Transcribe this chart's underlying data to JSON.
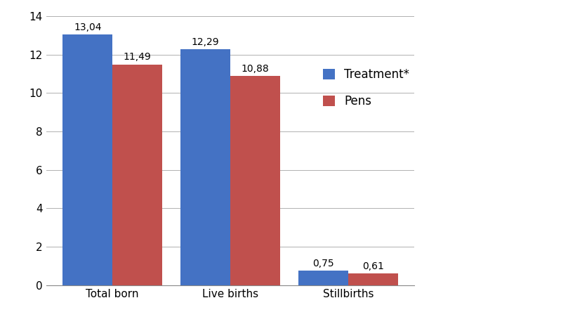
{
  "categories": [
    "Total born",
    "Live births",
    "Stillbirths"
  ],
  "treatment_values": [
    13.04,
    12.29,
    0.75
  ],
  "pens_values": [
    11.49,
    10.88,
    0.61
  ],
  "treatment_color": "#4472c4",
  "pens_color": "#c0504d",
  "legend_labels": [
    "Treatment*",
    "Pens"
  ],
  "ylim": [
    0,
    14
  ],
  "yticks": [
    0,
    2,
    4,
    6,
    8,
    10,
    12,
    14
  ],
  "bar_width": 0.42,
  "tick_fontsize": 11,
  "legend_fontsize": 12,
  "annotation_fontsize": 10,
  "background_color": "#ffffff",
  "grid_color": "#b0b0b0",
  "figure_width": 8.2,
  "figure_height": 4.61
}
